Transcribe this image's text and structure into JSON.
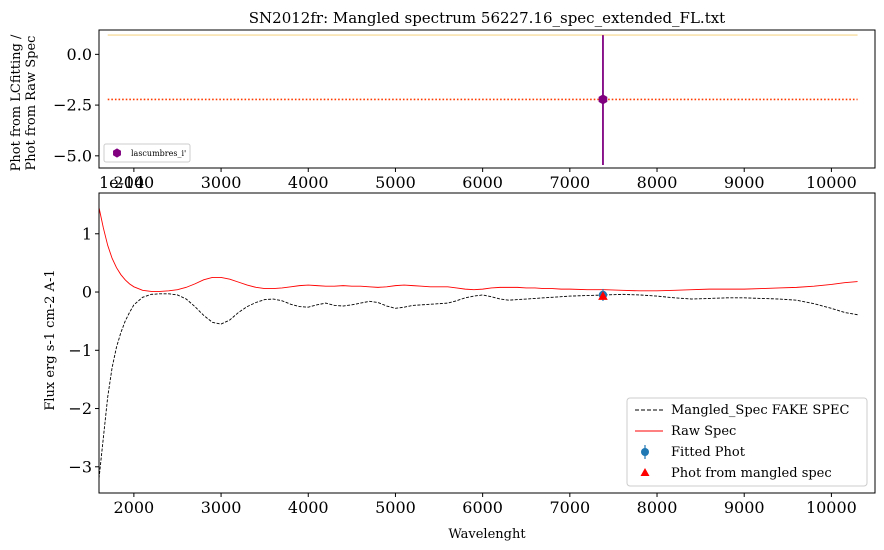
{
  "chart_data": [
    {
      "type": "scatter",
      "title": "SN2012fr: Mangled spectrum 56227.16_spec_extended_FL.txt",
      "ylabel_line1": "Phot from LCfitting /",
      "ylabel_line2": "Phot from Raw Spec",
      "offset_text": "1e-14",
      "xlim": [
        1600,
        10500
      ],
      "ylim": [
        -5.6,
        1.2
      ],
      "xticks": [
        2000,
        3000,
        4000,
        5000,
        6000,
        7000,
        8000,
        9000,
        10000
      ],
      "yticks": [
        {
          "value": 0.0,
          "label": "0.0"
        },
        {
          "value": -2.5,
          "label": "−2.5"
        },
        {
          "value": -5.0,
          "label": "−5.0"
        }
      ],
      "grid": false,
      "legend_position": "lower-left",
      "hlines": [
        {
          "y": 0.95,
          "color": "#f5d58a",
          "style": "solid"
        },
        {
          "y": -2.22,
          "color": "#ff3b00",
          "style": "dotted"
        }
      ],
      "series": [
        {
          "name": "lascumbres_i'",
          "color": "#800080",
          "marker": "hexagon",
          "points": [
            {
              "x": 7380,
              "y": -2.22,
              "yerr_low": -5.45,
              "yerr_high": 0.95
            }
          ]
        }
      ]
    },
    {
      "type": "line",
      "title": "",
      "xlabel": "Wavelenght",
      "ylabel": "Flux erg s-1 cm-2 A-1",
      "xlim": [
        1600,
        10500
      ],
      "ylim": [
        -3.45,
        1.7
      ],
      "xticks": [
        2000,
        3000,
        4000,
        5000,
        6000,
        7000,
        8000,
        9000,
        10000
      ],
      "yticks": [
        {
          "value": 1,
          "label": "1"
        },
        {
          "value": 0,
          "label": "0"
        },
        {
          "value": -1,
          "label": "−1"
        },
        {
          "value": -2,
          "label": "−2"
        },
        {
          "value": -3,
          "label": "−3"
        }
      ],
      "grid": false,
      "legend_position": "lower-right",
      "series": [
        {
          "name": "Mangled_Spec FAKE SPEC",
          "color": "#000000",
          "style": "dashed",
          "x": [
            1600,
            1650,
            1700,
            1750,
            1800,
            1850,
            1900,
            1950,
            2000,
            2100,
            2200,
            2300,
            2400,
            2500,
            2600,
            2700,
            2800,
            2900,
            3000,
            3100,
            3200,
            3300,
            3400,
            3500,
            3600,
            3700,
            3800,
            3900,
            4000,
            4100,
            4200,
            4300,
            4400,
            4500,
            4600,
            4700,
            4800,
            4900,
            5000,
            5100,
            5200,
            5300,
            5400,
            5500,
            5600,
            5700,
            5800,
            5900,
            6000,
            6100,
            6200,
            6300,
            6400,
            6500,
            6600,
            6700,
            6800,
            6900,
            7000,
            7200,
            7400,
            7600,
            7800,
            8000,
            8200,
            8400,
            8600,
            8800,
            9000,
            9200,
            9400,
            9600,
            9800,
            10000,
            10150,
            10300
          ],
          "values": [
            -3.2,
            -2.5,
            -1.8,
            -1.3,
            -0.95,
            -0.7,
            -0.5,
            -0.35,
            -0.22,
            -0.09,
            -0.04,
            -0.03,
            -0.03,
            -0.05,
            -0.12,
            -0.25,
            -0.4,
            -0.52,
            -0.55,
            -0.48,
            -0.35,
            -0.25,
            -0.18,
            -0.13,
            -0.12,
            -0.15,
            -0.21,
            -0.25,
            -0.26,
            -0.22,
            -0.19,
            -0.23,
            -0.24,
            -0.22,
            -0.19,
            -0.16,
            -0.18,
            -0.24,
            -0.28,
            -0.26,
            -0.23,
            -0.22,
            -0.21,
            -0.2,
            -0.19,
            -0.15,
            -0.1,
            -0.07,
            -0.05,
            -0.08,
            -0.12,
            -0.14,
            -0.13,
            -0.12,
            -0.11,
            -0.1,
            -0.09,
            -0.08,
            -0.07,
            -0.06,
            -0.05,
            -0.04,
            -0.05,
            -0.07,
            -0.1,
            -0.12,
            -0.11,
            -0.1,
            -0.1,
            -0.11,
            -0.12,
            -0.14,
            -0.2,
            -0.28,
            -0.35,
            -0.39
          ]
        },
        {
          "name": "Raw Spec",
          "color": "#ff0000",
          "style": "solid",
          "x": [
            1600,
            1650,
            1700,
            1750,
            1800,
            1850,
            1900,
            1950,
            2000,
            2100,
            2200,
            2300,
            2400,
            2500,
            2600,
            2700,
            2800,
            2900,
            3000,
            3100,
            3200,
            3300,
            3400,
            3500,
            3600,
            3700,
            3800,
            3900,
            4000,
            4100,
            4200,
            4300,
            4400,
            4500,
            4600,
            4700,
            4800,
            4900,
            5000,
            5100,
            5200,
            5300,
            5400,
            5500,
            5600,
            5700,
            5800,
            5900,
            6000,
            6100,
            6200,
            6300,
            6400,
            6500,
            6600,
            6700,
            6800,
            6900,
            7000,
            7200,
            7400,
            7600,
            7800,
            8000,
            8200,
            8400,
            8600,
            8800,
            9000,
            9200,
            9400,
            9600,
            9800,
            10000,
            10150,
            10300
          ],
          "values": [
            1.45,
            1.1,
            0.8,
            0.58,
            0.42,
            0.3,
            0.21,
            0.14,
            0.09,
            0.03,
            0.01,
            0.01,
            0.02,
            0.04,
            0.08,
            0.14,
            0.21,
            0.25,
            0.25,
            0.22,
            0.17,
            0.12,
            0.08,
            0.06,
            0.06,
            0.07,
            0.09,
            0.11,
            0.12,
            0.11,
            0.1,
            0.1,
            0.11,
            0.1,
            0.1,
            0.09,
            0.08,
            0.09,
            0.11,
            0.12,
            0.11,
            0.1,
            0.09,
            0.09,
            0.09,
            0.07,
            0.05,
            0.04,
            0.05,
            0.07,
            0.08,
            0.08,
            0.08,
            0.07,
            0.07,
            0.06,
            0.06,
            0.05,
            0.05,
            0.04,
            0.04,
            0.03,
            0.02,
            0.02,
            0.03,
            0.04,
            0.05,
            0.05,
            0.05,
            0.06,
            0.07,
            0.08,
            0.1,
            0.13,
            0.16,
            0.18
          ]
        },
        {
          "name": "Fitted Phot",
          "color": "#1f77b4",
          "marker": "circle",
          "points": [
            {
              "x": 7380,
              "y": -0.05
            }
          ]
        },
        {
          "name": "Phot from mangled spec",
          "color": "#ff0000",
          "marker": "triangle",
          "points": [
            {
              "x": 7380,
              "y": -0.07
            }
          ]
        }
      ]
    }
  ]
}
